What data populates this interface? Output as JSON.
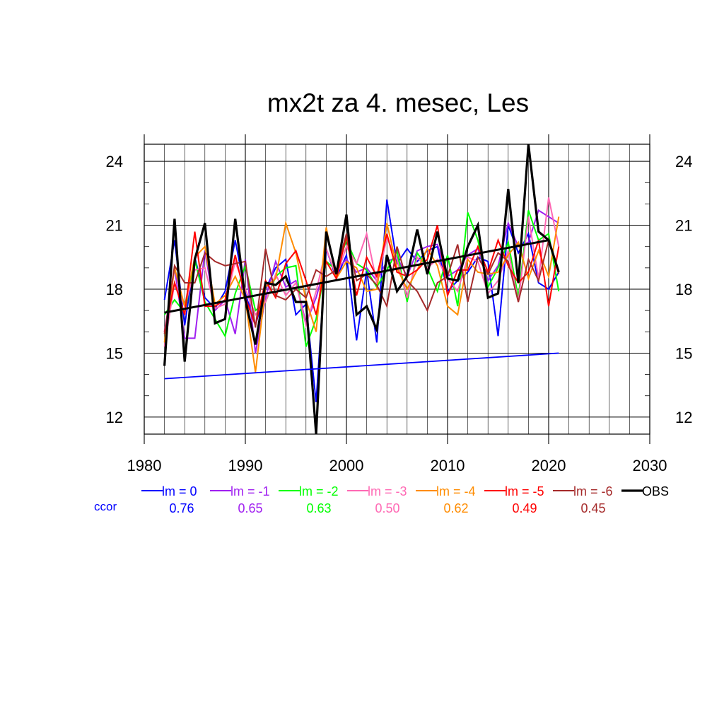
{
  "chart_data": {
    "type": "line",
    "title": "mx2t za 4. mesec, Les",
    "xlabel": "",
    "ylabel": "",
    "xlim": [
      1980,
      2030
    ],
    "ylim": [
      11.2,
      24.8
    ],
    "x_ticks": [
      1980,
      1990,
      2000,
      2010,
      2020,
      2030
    ],
    "y_ticks": [
      12,
      15,
      18,
      21,
      24
    ],
    "grid": true,
    "ccor_label": "ccor",
    "years": [
      1982,
      1983,
      1984,
      1985,
      1986,
      1987,
      1988,
      1989,
      1990,
      1991,
      1992,
      1993,
      1994,
      1995,
      1996,
      1997,
      1998,
      1999,
      2000,
      2001,
      2002,
      2003,
      2004,
      2005,
      2006,
      2007,
      2008,
      2009,
      2010,
      2011,
      2012,
      2013,
      2014,
      2015,
      2016,
      2017,
      2018,
      2019,
      2020,
      2021
    ],
    "series": [
      {
        "name": "lm = 0",
        "color": "#0000ff",
        "ccor": "0.76",
        "values": [
          17.5,
          20.3,
          16.3,
          19.5,
          17.6,
          17.1,
          17.9,
          20.3,
          17.8,
          16.3,
          18.0,
          19.0,
          19.4,
          16.8,
          17.3,
          12.7,
          19.9,
          18.5,
          19.6,
          15.6,
          18.9,
          15.5,
          22.2,
          19.2,
          19.9,
          19.3,
          19.8,
          20.0,
          17.9,
          18.4,
          18.8,
          19.5,
          19.3,
          15.8,
          21.0,
          19.7,
          20.6,
          18.3,
          18.0,
          18.8
        ]
      },
      {
        "name": "lm = -1",
        "color": "#a020f0",
        "ccor": "0.65",
        "values": [
          16.0,
          19.0,
          15.7,
          15.7,
          19.8,
          17.0,
          17.5,
          15.9,
          19.4,
          15.0,
          17.6,
          19.3,
          18.1,
          18.4,
          16.4,
          17.6,
          19.3,
          18.9,
          19.4,
          18.8,
          19.0,
          18.4,
          19.3,
          19.5,
          18.6,
          19.8,
          20.0,
          20.1,
          18.6,
          18.9,
          19.6,
          19.9,
          18.4,
          19.1,
          21.1,
          20.0,
          20.2,
          21.7,
          21.4,
          21.1
        ]
      },
      {
        "name": "lm = -2",
        "color": "#00ff00",
        "ccor": "0.63",
        "values": [
          16.8,
          17.5,
          16.9,
          19.4,
          17.4,
          16.6,
          15.8,
          17.8,
          19.1,
          17.0,
          17.4,
          18.6,
          19.0,
          19.1,
          15.3,
          16.6,
          19.3,
          18.9,
          20.3,
          19.2,
          18.9,
          18.1,
          18.9,
          19.8,
          17.4,
          19.7,
          19.0,
          17.9,
          19.6,
          17.2,
          21.6,
          20.3,
          18.1,
          19.0,
          20.2,
          17.6,
          21.7,
          20.3,
          20.6,
          17.9
        ]
      },
      {
        "name": "lm = -3",
        "color": "#ff69b4",
        "ccor": "0.50",
        "values": [
          15.3,
          18.3,
          17.2,
          18.9,
          19.0,
          17.1,
          17.3,
          19.3,
          18.0,
          16.8,
          17.4,
          18.7,
          17.7,
          18.3,
          16.3,
          17.9,
          19.9,
          18.6,
          20.0,
          19.2,
          20.6,
          18.3,
          20.4,
          19.4,
          17.6,
          19.5,
          19.0,
          19.4,
          18.5,
          17.9,
          19.5,
          19.3,
          17.8,
          18.4,
          19.8,
          17.4,
          21.4,
          18.5,
          22.3,
          20.0
        ]
      },
      {
        "name": "lm = -4",
        "color": "#ff8c00",
        "ccor": "0.62",
        "values": [
          15.5,
          19.0,
          17.2,
          19.5,
          20.0,
          17.3,
          17.7,
          18.6,
          17.5,
          14.1,
          18.1,
          18.5,
          21.1,
          19.7,
          17.5,
          16.0,
          20.9,
          18.5,
          19.3,
          19.0,
          17.9,
          18.0,
          21.1,
          19.0,
          18.0,
          18.9,
          19.9,
          19.1,
          17.2,
          16.8,
          19.4,
          18.8,
          18.7,
          18.8,
          19.6,
          20.2,
          18.5,
          19.8,
          18.6,
          21.4
        ]
      },
      {
        "name": "lm = -5",
        "color": "#ff0000",
        "ccor": "0.49",
        "values": [
          16.0,
          18.3,
          16.8,
          20.7,
          17.2,
          17.2,
          17.5,
          19.6,
          17.6,
          16.3,
          18.4,
          17.6,
          19.2,
          19.8,
          18.4,
          16.8,
          19.3,
          18.5,
          20.5,
          17.7,
          19.5,
          18.6,
          20.6,
          18.8,
          18.6,
          18.9,
          19.4,
          21.0,
          17.7,
          18.9,
          18.9,
          20.0,
          18.8,
          20.3,
          19.1,
          18.3,
          18.8,
          20.3,
          17.2,
          20.0
        ]
      },
      {
        "name": "lm = -6",
        "color": "#a52a2a",
        "ccor": "0.45",
        "values": [
          15.9,
          19.1,
          18.3,
          18.3,
          19.7,
          19.3,
          19.1,
          19.2,
          19.3,
          16.2,
          19.9,
          17.7,
          17.5,
          18.0,
          17.6,
          18.9,
          18.6,
          18.9,
          20.6,
          18.4,
          18.7,
          18.2,
          17.2,
          20.0,
          18.4,
          17.9,
          17.0,
          18.3,
          18.6,
          20.1,
          17.4,
          19.5,
          18.7,
          19.7,
          19.3,
          17.4,
          19.4,
          18.4,
          20.3,
          18.7
        ]
      },
      {
        "name": "OBS",
        "color": "#000000",
        "ccor": "",
        "values": [
          14.4,
          21.3,
          14.6,
          19.4,
          21.1,
          16.4,
          16.6,
          21.3,
          17.5,
          15.4,
          18.3,
          18.2,
          18.6,
          17.4,
          17.4,
          11.2,
          20.7,
          18.7,
          21.5,
          16.8,
          17.2,
          16.1,
          19.6,
          17.9,
          18.6,
          20.8,
          18.7,
          20.7,
          18.5,
          18.4,
          20.0,
          21.0,
          17.6,
          17.8,
          22.7,
          18.3,
          24.8,
          20.7,
          20.3,
          18.8
        ]
      }
    ],
    "trend_lines": [
      {
        "name": "OBS trend",
        "color": "#000000",
        "x": [
          1982,
          2020
        ],
        "y": [
          16.9,
          20.3
        ]
      },
      {
        "name": "lm = 0 trend",
        "color": "#0000ff",
        "x": [
          1982,
          2021
        ],
        "y": [
          13.8,
          15.0
        ]
      }
    ]
  }
}
